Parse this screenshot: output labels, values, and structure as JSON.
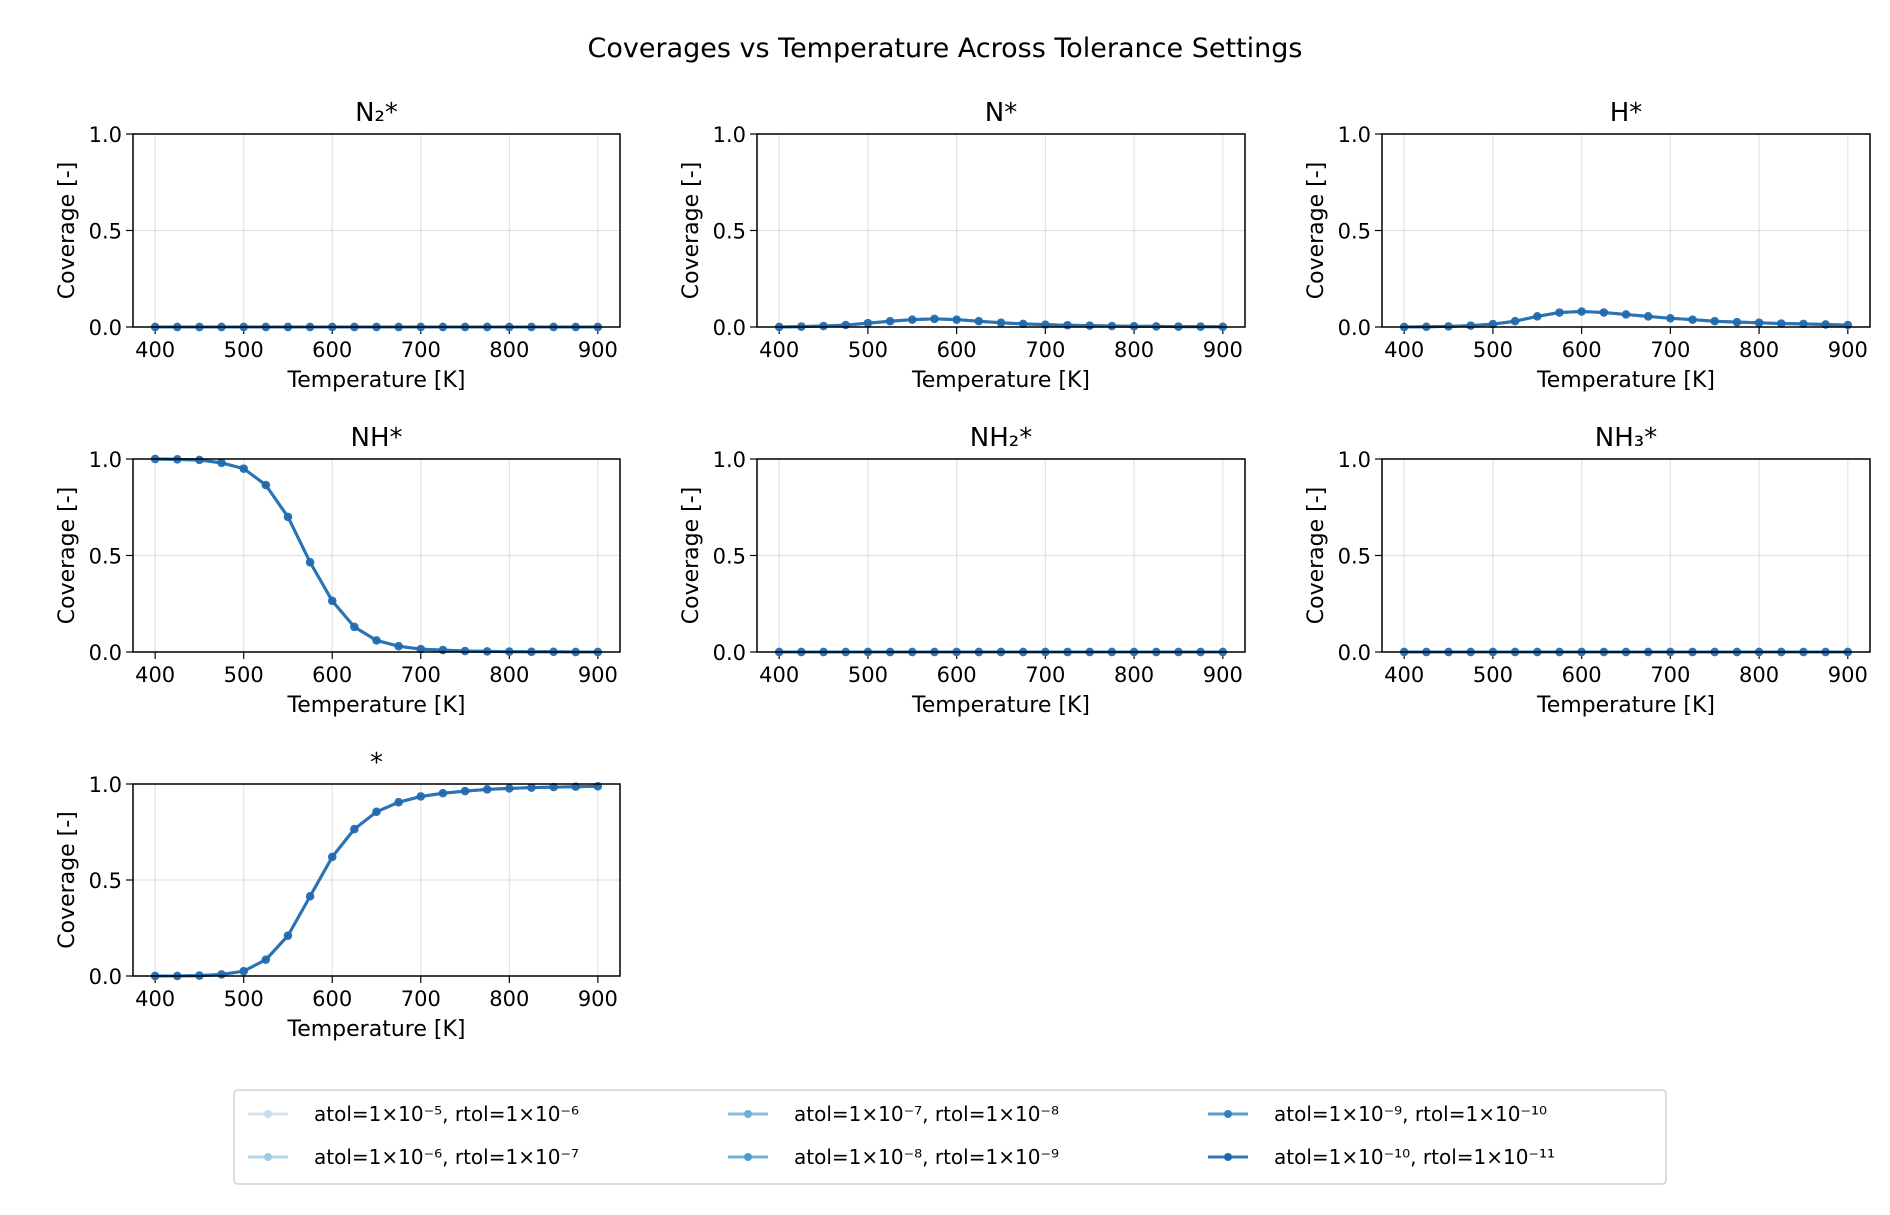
{
  "chart_data": {
    "type": "line",
    "title": "Coverages vs Temperature Across Tolerance Settings",
    "xlabel": "Temperature [K]",
    "ylabel": "Coverage [-]",
    "xlim": [
      375,
      925
    ],
    "ylim": [
      0,
      1
    ],
    "xticks": [
      "400",
      "500",
      "600",
      "700",
      "800",
      "900"
    ],
    "yticks": [
      "0.0",
      "0.5",
      "1.0"
    ],
    "grid": true,
    "legend_placement": "bottom-center",
    "x": [
      400,
      425,
      450,
      475,
      500,
      525,
      550,
      575,
      600,
      625,
      650,
      675,
      700,
      725,
      750,
      775,
      800,
      825,
      850,
      875,
      900
    ],
    "series": [
      {
        "name": "atol=1×10⁻⁵, rtol=1×10⁻⁶",
        "color": "#c6dbef"
      },
      {
        "name": "atol=1×10⁻⁶, rtol=1×10⁻⁷",
        "color": "#9ecae1"
      },
      {
        "name": "atol=1×10⁻⁷, rtol=1×10⁻⁸",
        "color": "#6baed6"
      },
      {
        "name": "atol=1×10⁻⁸, rtol=1×10⁻⁹",
        "color": "#4f9bcc"
      },
      {
        "name": "atol=1×10⁻⁹, rtol=1×10⁻¹⁰",
        "color": "#3182bd"
      },
      {
        "name": "atol=1×10⁻¹⁰, rtol=1×10⁻¹¹",
        "color": "#2166ac"
      }
    ],
    "panels": [
      {
        "title": "N₂*",
        "values": [
          0,
          0,
          0,
          0,
          0,
          0,
          0,
          0,
          0,
          0,
          0,
          0,
          0,
          0,
          0,
          0,
          0,
          0,
          0,
          0,
          0
        ]
      },
      {
        "title": "N*",
        "values": [
          0,
          0.002,
          0.005,
          0.01,
          0.02,
          0.03,
          0.038,
          0.042,
          0.038,
          0.03,
          0.022,
          0.016,
          0.012,
          0.009,
          0.007,
          0.005,
          0.004,
          0.003,
          0.002,
          0.002,
          0.001
        ]
      },
      {
        "title": "H*",
        "values": [
          0,
          0.001,
          0.003,
          0.007,
          0.015,
          0.03,
          0.055,
          0.075,
          0.08,
          0.075,
          0.065,
          0.055,
          0.045,
          0.038,
          0.03,
          0.025,
          0.022,
          0.018,
          0.016,
          0.013,
          0.01
        ]
      },
      {
        "title": "NH*",
        "values": [
          1.0,
          0.998,
          0.995,
          0.98,
          0.95,
          0.865,
          0.7,
          0.465,
          0.265,
          0.13,
          0.06,
          0.03,
          0.015,
          0.01,
          0.005,
          0.003,
          0.002,
          0.001,
          0.001,
          0,
          0
        ]
      },
      {
        "title": "NH₂*",
        "values": [
          0,
          0,
          0,
          0,
          0,
          0,
          0,
          0,
          0,
          0,
          0,
          0,
          0,
          0,
          0,
          0,
          0,
          0,
          0,
          0,
          0
        ]
      },
      {
        "title": "NH₃*",
        "values": [
          0,
          0,
          0,
          0,
          0,
          0,
          0,
          0,
          0,
          0,
          0,
          0,
          0,
          0,
          0,
          0,
          0,
          0,
          0,
          0,
          0
        ]
      },
      {
        "title": "*",
        "values": [
          0,
          0,
          0.002,
          0.008,
          0.025,
          0.085,
          0.21,
          0.415,
          0.62,
          0.765,
          0.855,
          0.905,
          0.935,
          0.952,
          0.963,
          0.972,
          0.977,
          0.981,
          0.984,
          0.986,
          0.988
        ]
      }
    ]
  }
}
